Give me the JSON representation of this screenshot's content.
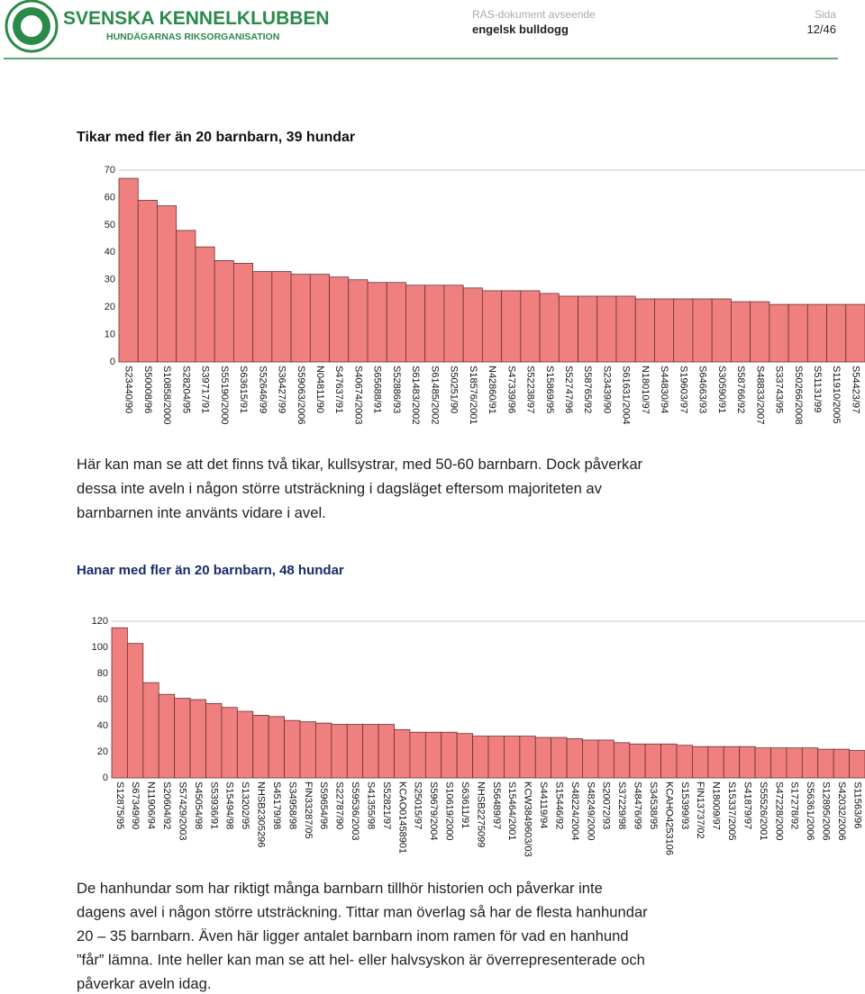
{
  "header": {
    "org": "SVENSKA KENNELKLUBBEN",
    "org_sub": "HUNDÄGARNAS RIKSORGANISATION",
    "doc_label": "RAS-dokument avseende",
    "doc_title": "engelsk bulldogg",
    "page_label": "Sida",
    "page": "12/46"
  },
  "chart_data": [
    {
      "type": "bar",
      "title": "Tikar med fler än 20 barnbarn, 39 hundar",
      "color": "#f08080",
      "categories": [
        "S23440/90",
        "S50008/96",
        "S10858/2000",
        "S28204/95",
        "S39717/91",
        "S55190/2000",
        "S63615/91",
        "S52646/99",
        "S36427/99",
        "S59063/2006",
        "N04811/90",
        "S47637/91",
        "S40674/2003",
        "S65688/91",
        "S52886/93",
        "S61483/2002",
        "S61485/2002",
        "S50251/90",
        "S18576/2001",
        "N42860/91",
        "S47339/96",
        "S52238/97",
        "S15869/95",
        "S52747/96",
        "S58765/92",
        "S23439/90",
        "S61631/2004",
        "N18010/97",
        "S44830/94",
        "S19603/97",
        "S64663/93",
        "S30590/91",
        "S58766/92",
        "S48833/2007",
        "S33743/95",
        "S50266/2008",
        "S51131/99",
        "S11910/2005",
        "S54423/97"
      ],
      "values": [
        67,
        59,
        57,
        48,
        42,
        37,
        36,
        33,
        33,
        32,
        32,
        31,
        30,
        29,
        29,
        28,
        28,
        28,
        27,
        26,
        26,
        26,
        25,
        24,
        24,
        24,
        24,
        23,
        23,
        23,
        23,
        23,
        22,
        22,
        21,
        21,
        21,
        21,
        21
      ],
      "ylim": [
        0,
        70
      ],
      "yticks": [
        0,
        10,
        20,
        30,
        40,
        50,
        60,
        70
      ]
    },
    {
      "type": "bar",
      "title": "Hanar med fler än 20 barnbarn, 48 hundar",
      "color": "#f08080",
      "categories": [
        "S12875/95",
        "S67349/90",
        "N11906/94",
        "S20604/92",
        "S57429/2003",
        "S45054/98",
        "S53936/91",
        "S15494/98",
        "S13202/95",
        "NHSB2305296",
        "S45179/98",
        "S34958/98",
        "FIN33287/05",
        "S59654/96",
        "S22787/90",
        "S59536/2003",
        "S41355/98",
        "S52821/97",
        "KCAO01458901",
        "S25015/97",
        "S59679/2004",
        "S10619/2000",
        "S63611/91",
        "NHSB2275099",
        "S56489/97",
        "S15464/2001",
        "KCW3849603/03",
        "S44119/94",
        "S15446/92",
        "S48224/2004",
        "S48249/2000",
        "S20072/93",
        "S37229/98",
        "S48476/99",
        "S34538/95",
        "KCAHO4253106",
        "S15399/93",
        "FIN13737/02",
        "N18009/97",
        "S15337/2005",
        "S41879/97",
        "S55526/2001",
        "S47228/2000",
        "S17278/92",
        "S56361/2006",
        "S12895/2006",
        "S42032/2006",
        "S11563/96"
      ],
      "values": [
        115,
        103,
        73,
        64,
        61,
        60,
        57,
        54,
        51,
        48,
        47,
        44,
        43,
        42,
        41,
        41,
        41,
        41,
        37,
        35,
        35,
        35,
        34,
        32,
        32,
        32,
        32,
        31,
        31,
        30,
        29,
        29,
        27,
        26,
        26,
        26,
        25,
        24,
        24,
        24,
        24,
        23,
        23,
        23,
        23,
        22,
        22,
        21
      ],
      "ylim": [
        0,
        120
      ],
      "yticks": [
        0,
        20,
        40,
        60,
        80,
        100,
        120
      ]
    }
  ],
  "paragraphs": [
    [
      "Här kan man se att det finns två tikar, kullsystrar, med 50-60 barnbarn. Dock påverkar",
      "dessa inte aveln i någon större utsträckning i dagsläget eftersom majoriteten av",
      "barnbarnen inte använts vidare i avel."
    ],
    [
      "De hanhundar som har riktigt många barnbarn tillhör historien och påverkar inte",
      "dagens avel i någon större utsträckning. Tittar man överlag så har de flesta hanhundar",
      "20 – 35 barnbarn. Även här ligger antalet barnbarn inom ramen för vad en hanhund",
      "”får” lämna. Inte heller kan man se att hel- eller halvsyskon är överrepresenterade och",
      "påverkar aveln idag."
    ]
  ]
}
